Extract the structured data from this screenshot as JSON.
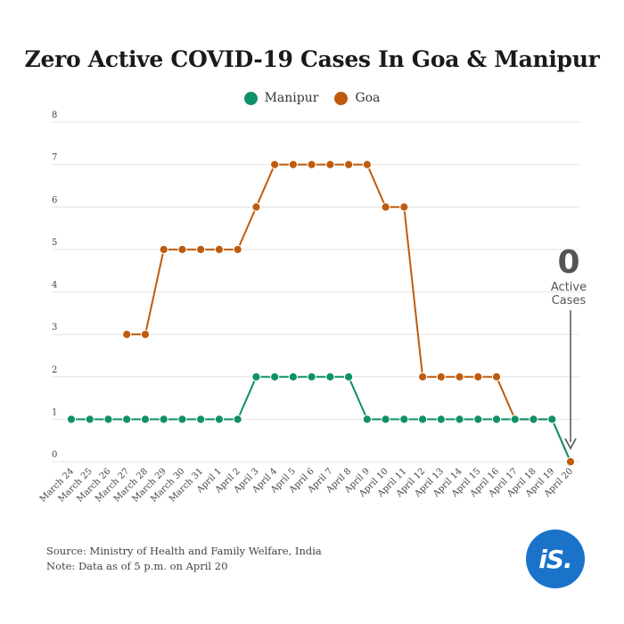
{
  "title": "Zero Active COVID-19 Cases In Goa & Manipur",
  "colors": {
    "manipur": "#10906a",
    "goa": "#c05a0c",
    "grid": "#e4e4e4",
    "arrow": "#555555",
    "logo": "#1a73c9"
  },
  "source_line1": "Source: Ministry of Health and Family Welfare, India",
  "source_line2": "Note: Data as of 5 p.m. on April 20",
  "logo_text": "iS.",
  "annotation": {
    "number": "0",
    "line1": "Active",
    "line2": "Cases"
  },
  "chart_data": {
    "type": "line",
    "title": "Zero Active COVID-19 Cases In Goa & Manipur",
    "xlabel": "",
    "ylabel": "",
    "ylim": [
      0,
      8
    ],
    "yticks": [
      0,
      1,
      2,
      3,
      4,
      5,
      6,
      7,
      8
    ],
    "grid": true,
    "legend_position": "top-center",
    "categories": [
      "March 24",
      "March 25",
      "March 26",
      "March 27",
      "March 28",
      "March 29",
      "March 30",
      "March 31",
      "April 1",
      "April 2",
      "April 3",
      "April 4",
      "April 5",
      "April 6",
      "April 7",
      "April 8",
      "April 9",
      "April 10",
      "April 11",
      "April 12",
      "April 13",
      "April 14",
      "April 15",
      "April 16",
      "April 17",
      "April 18",
      "April 19",
      "April 20"
    ],
    "series": [
      {
        "name": "Manipur",
        "color": "#10906a",
        "values": [
          1,
          1,
          1,
          1,
          1,
          1,
          1,
          1,
          1,
          1,
          2,
          2,
          2,
          2,
          2,
          2,
          1,
          1,
          1,
          1,
          1,
          1,
          1,
          1,
          1,
          1,
          1,
          0
        ]
      },
      {
        "name": "Goa",
        "color": "#c05a0c",
        "values": [
          null,
          null,
          null,
          3,
          3,
          5,
          5,
          5,
          5,
          5,
          6,
          7,
          7,
          7,
          7,
          7,
          7,
          6,
          6,
          2,
          2,
          2,
          2,
          2,
          1,
          1,
          1,
          0
        ]
      }
    ]
  }
}
